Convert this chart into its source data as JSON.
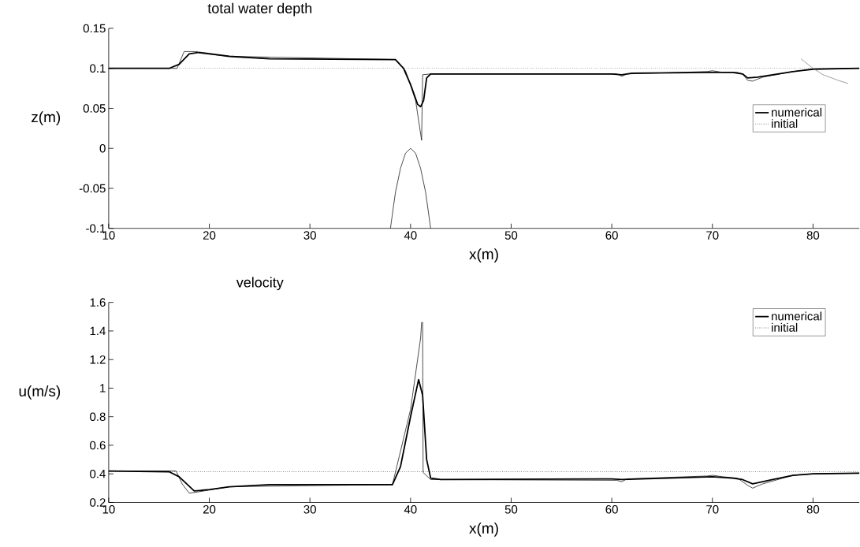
{
  "chart_data": [
    {
      "type": "line",
      "title": "total water depth",
      "xlabel": "x(m)",
      "ylabel": "z(m)",
      "xlim": [
        10,
        84.6
      ],
      "ylim": [
        -0.1,
        0.15
      ],
      "xticks": [
        10,
        20,
        30,
        40,
        50,
        60,
        70,
        80
      ],
      "yticks": [
        -0.1,
        -0.05,
        0,
        0.05,
        0.1,
        0.15
      ],
      "legend": "right",
      "series": [
        {
          "name": "numerical",
          "color": "#000000",
          "line_style": "solid",
          "x": [
            10,
            16,
            17,
            18,
            19,
            22,
            26,
            38.5,
            39.3,
            40,
            40.7,
            41,
            41.3,
            41.6,
            42,
            60,
            61,
            62,
            70,
            72,
            73,
            73.5,
            74.5,
            76,
            78,
            80,
            84.6
          ],
          "values": [
            0.1,
            0.1,
            0.105,
            0.118,
            0.12,
            0.115,
            0.112,
            0.111,
            0.1,
            0.08,
            0.055,
            0.052,
            0.06,
            0.088,
            0.093,
            0.093,
            0.092,
            0.094,
            0.095,
            0.095,
            0.093,
            0.088,
            0.089,
            0.092,
            0.096,
            0.099,
            0.1
          ]
        },
        {
          "name": "initial",
          "color": "#000000",
          "line_style": "dotted",
          "x": [
            10,
            84.6
          ],
          "values": [
            0.1,
            0.1
          ]
        },
        {
          "color": "#000000",
          "line_style": "solid",
          "x": [
            10,
            16.8,
            17.5,
            18.8,
            19,
            22,
            38.5,
            39.5,
            40.5,
            41.1,
            41.2,
            42,
            60.5,
            61,
            61.5,
            69.5,
            70,
            71,
            72.5,
            73,
            73.5,
            74,
            75,
            78,
            80,
            84.6
          ],
          "values": [
            0.1,
            0.1,
            0.121,
            0.121,
            0.119,
            0.115,
            0.111,
            0.097,
            0.06,
            0.01,
            0.092,
            0.093,
            0.093,
            0.09,
            0.093,
            0.096,
            0.097,
            0.095,
            0.095,
            0.093,
            0.085,
            0.084,
            0.089,
            0.096,
            0.099,
            0.1
          ]
        },
        {
          "color": "#000000",
          "line_style": "solid",
          "x": [
            38,
            38.5,
            39,
            39.5,
            40,
            40.5,
            41,
            41.5,
            42
          ],
          "values": [
            -0.1,
            -0.055,
            -0.025,
            -0.006,
            0,
            -0.006,
            -0.025,
            -0.055,
            -0.1
          ]
        },
        {
          "color": "#777777",
          "line_style": "solid",
          "x": [
            78.8,
            80,
            81,
            82.5,
            83.5
          ],
          "values": [
            0.112,
            0.1,
            0.092,
            0.085,
            0.081
          ]
        }
      ]
    },
    {
      "type": "line",
      "title": "velocity",
      "xlabel": "x(m)",
      "ylabel": "u(m/s)",
      "xlim": [
        10,
        84.6
      ],
      "ylim": [
        0.2,
        1.6
      ],
      "xticks": [
        10,
        20,
        30,
        40,
        50,
        60,
        70,
        80
      ],
      "yticks": [
        0.2,
        0.4,
        0.6,
        0.8,
        1,
        1.2,
        1.4,
        1.6
      ],
      "legend": "top right",
      "series": [
        {
          "name": "numerical",
          "color": "#000000",
          "line_style": "solid",
          "x": [
            10,
            16,
            17,
            18.5,
            20,
            22,
            26,
            38.2,
            39,
            40,
            40.8,
            41.2,
            41.6,
            42,
            43,
            60,
            61,
            70,
            72,
            73,
            74,
            76,
            78,
            80,
            84.6
          ],
          "values": [
            0.42,
            0.415,
            0.38,
            0.28,
            0.29,
            0.31,
            0.325,
            0.325,
            0.45,
            0.8,
            1.06,
            0.95,
            0.5,
            0.37,
            0.36,
            0.365,
            0.36,
            0.38,
            0.37,
            0.36,
            0.33,
            0.36,
            0.39,
            0.4,
            0.405
          ]
        },
        {
          "name": "initial",
          "color": "#000000",
          "line_style": "dotted",
          "x": [
            10,
            84.6
          ],
          "values": [
            0.415,
            0.415
          ]
        },
        {
          "color": "#000000",
          "line_style": "solid",
          "x": [
            10,
            16.7,
            17.3,
            18,
            19,
            22,
            38.2,
            40,
            41,
            41.1,
            41.2,
            41.25,
            42,
            60.5,
            61,
            61.5,
            69.5,
            70,
            71,
            72.5,
            73.5,
            74,
            75,
            78,
            80,
            84.6
          ],
          "values": [
            0.42,
            0.42,
            0.33,
            0.265,
            0.275,
            0.31,
            0.325,
            0.85,
            1.35,
            1.46,
            1.46,
            0.41,
            0.36,
            0.355,
            0.345,
            0.365,
            0.385,
            0.39,
            0.38,
            0.37,
            0.32,
            0.3,
            0.33,
            0.39,
            0.4,
            0.405
          ]
        }
      ]
    }
  ]
}
